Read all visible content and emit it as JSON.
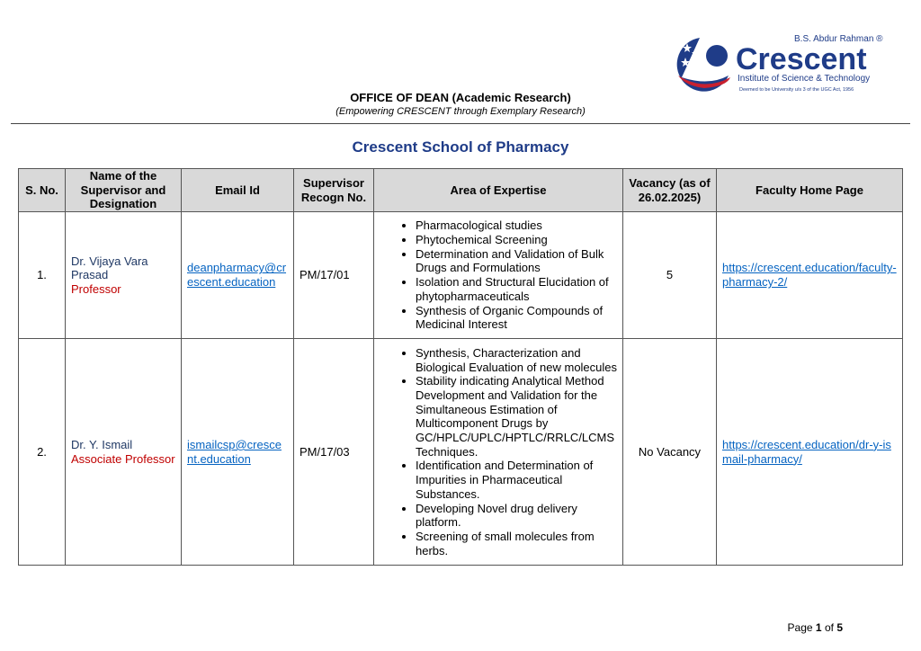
{
  "header": {
    "logo": {
      "top_text": "B.S. Abdur Rahman",
      "brand": "Crescent",
      "subtitle": "Institute of Science & Technology",
      "note": "Deemed to be University u/s 3 of the UGC Act, 1956",
      "colors": {
        "navy": "#1f3c88",
        "red": "#c8202f"
      }
    },
    "office": "OFFICE OF DEAN (Academic Research)",
    "tagline": "(Empowering CRESCENT through Exemplary Research)"
  },
  "school": "Crescent School of Pharmacy",
  "table": {
    "headers": [
      "S. No.",
      "Name of the Supervisor and Designation",
      "Email Id",
      "Supervisor Recogn No.",
      "Area of Expertise",
      "Vacancy (as of 26.02.2025)",
      "Faculty Home Page"
    ],
    "rows": [
      {
        "sno": "1.",
        "name": "Dr. Vijaya Vara Prasad",
        "designation": "Professor",
        "email": "deanpharmacy@crescent.education",
        "recogn": "PM/17/01",
        "areas": [
          "Pharmacological studies",
          "Phytochemical Screening",
          "Determination and Validation of Bulk Drugs and Formulations",
          "Isolation and Structural Elucidation of phytopharmaceuticals",
          "Synthesis of Organic Compounds of Medicinal Interest"
        ],
        "vacancy": "5",
        "homepage": "https://crescent.education/faculty-pharmacy-2/"
      },
      {
        "sno": "2.",
        "name": "Dr. Y. Ismail",
        "designation": "Associate Professor",
        "email": "ismailcsp@crescent.education",
        "recogn": "PM/17/03",
        "areas": [
          "Synthesis, Characterization and Biological Evaluation of new molecules",
          "Stability indicating Analytical Method Development and Validation for the Simultaneous Estimation of Multicomponent Drugs by GC/HPLC/UPLC/HPTLC/RRLC/LCMS Techniques.",
          "Identification and Determination of Impurities in Pharmaceutical Substances.",
          "Developing Novel drug delivery platform.",
          "Screening of small molecules from herbs."
        ],
        "vacancy": "No Vacancy",
        "homepage": "https://crescent.education/dr-y-ismail-pharmacy/"
      }
    ]
  },
  "footer": {
    "page_label": "Page",
    "page": "1",
    "of": "of",
    "total": "5"
  }
}
